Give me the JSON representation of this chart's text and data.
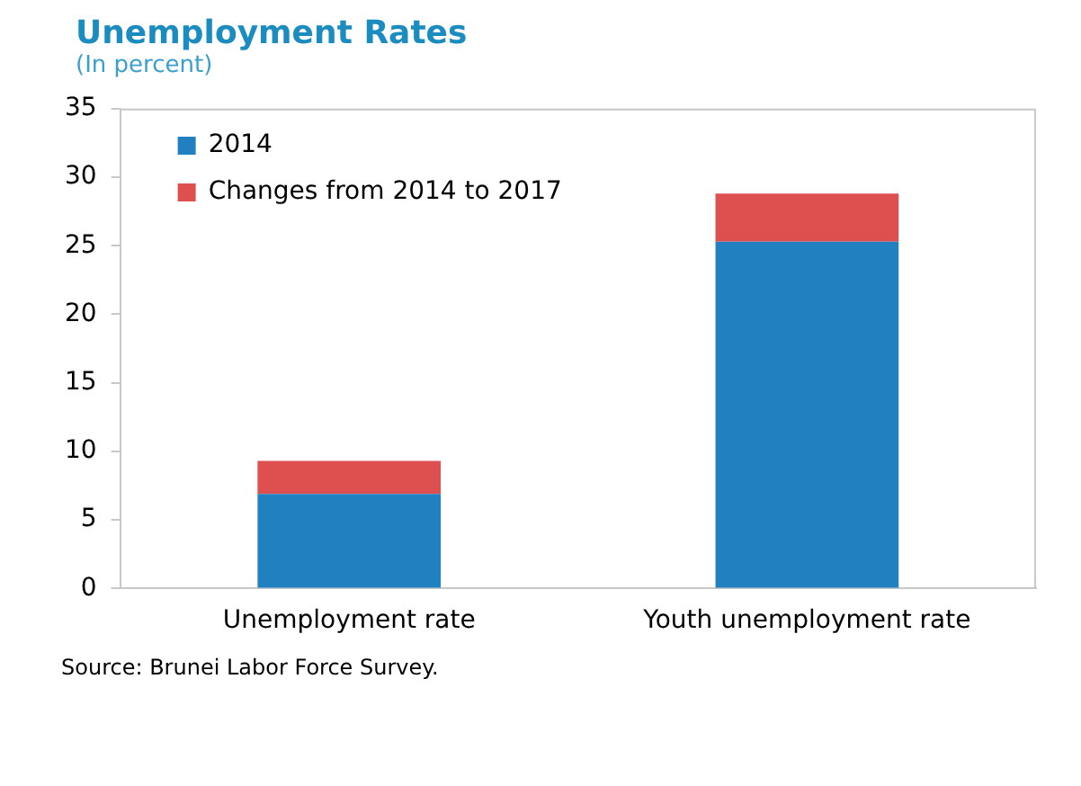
{
  "chart_data": {
    "type": "bar",
    "title": "Unemployment Rates",
    "subtitle": "(In percent)",
    "categories": [
      "Unemployment rate",
      "Youth unemployment rate"
    ],
    "stacked": true,
    "series": [
      {
        "name": "2014",
        "color": "#2180c0",
        "values": [
          6.9,
          25.3
        ]
      },
      {
        "name": "Changes from 2014 to 2017",
        "color": "#de4f4f",
        "values": [
          2.4,
          3.5
        ]
      }
    ],
    "ylim": [
      0,
      35
    ],
    "yticks": [
      0,
      5,
      10,
      15,
      20,
      25,
      30,
      35
    ],
    "grid": false,
    "legend": "top left",
    "annotations": [
      "Source: Brunei Labor Force Survey."
    ]
  }
}
